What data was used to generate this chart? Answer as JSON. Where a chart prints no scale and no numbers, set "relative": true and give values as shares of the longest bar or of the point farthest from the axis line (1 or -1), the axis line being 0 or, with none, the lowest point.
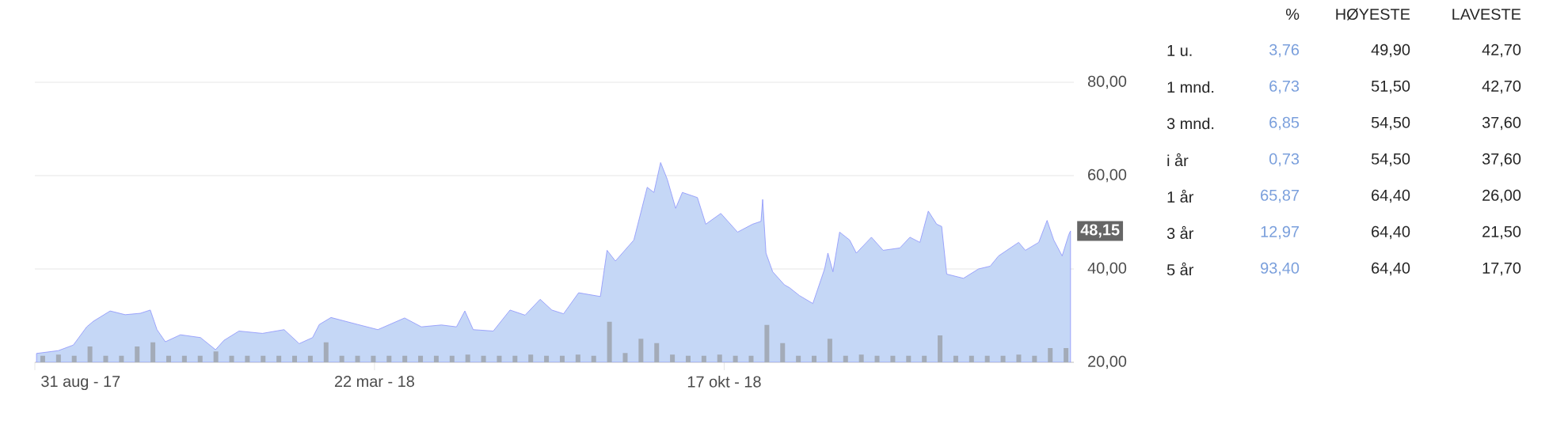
{
  "chart_data": [
    {
      "type": "area",
      "color": "#c5d7f6",
      "grid": "y",
      "xlim": [
        "2017-08-31",
        "2019-05-14"
      ],
      "xticks": [
        {
          "value": "2017-08-31",
          "label": "31 aug - 17"
        },
        {
          "value": "2018-03-22",
          "label": "22 mar - 18"
        },
        {
          "value": "2018-10-17",
          "label": "17 okt - 18"
        }
      ],
      "ylim": [
        20,
        80
      ],
      "yticks": [
        {
          "value": 20,
          "label": "20,00"
        },
        {
          "value": 40,
          "label": "40,00"
        },
        {
          "value": 60,
          "label": "60,00"
        },
        {
          "value": 80,
          "label": "80,00"
        }
      ],
      "x": [
        "2017-09-01",
        "2017-09-14",
        "2017-09-23",
        "2017-10-01",
        "2017-10-05",
        "2017-10-15",
        "2017-10-24",
        "2017-11-02",
        "2017-11-08",
        "2017-11-12",
        "2017-11-17",
        "2017-11-26",
        "2017-12-08",
        "2017-12-17",
        "2017-12-22",
        "2017-12-31",
        "2018-01-14",
        "2018-01-27",
        "2018-02-05",
        "2018-02-13",
        "2018-02-17",
        "2018-02-24",
        "2018-03-12",
        "2018-03-24",
        "2018-04-09",
        "2018-04-19",
        "2018-05-01",
        "2018-05-10",
        "2018-05-15",
        "2018-05-20",
        "2018-06-01",
        "2018-06-11",
        "2018-06-20",
        "2018-06-29",
        "2018-07-06",
        "2018-07-13",
        "2018-07-22",
        "2018-08-04",
        "2018-08-08",
        "2018-08-13",
        "2018-08-24",
        "2018-09-01",
        "2018-09-05",
        "2018-09-09",
        "2018-09-13",
        "2018-09-18",
        "2018-09-22",
        "2018-10-01",
        "2018-10-06",
        "2018-10-15",
        "2018-10-25",
        "2018-11-03",
        "2018-11-08",
        "2018-11-09",
        "2018-11-11",
        "2018-11-15",
        "2018-11-22",
        "2018-11-25",
        "2018-12-01",
        "2018-12-09",
        "2018-12-16",
        "2018-12-18",
        "2018-12-21",
        "2018-12-25",
        "2018-12-31",
        "2019-01-04",
        "2019-01-13",
        "2019-01-20",
        "2019-01-30",
        "2019-02-05",
        "2019-02-11",
        "2019-02-16",
        "2019-02-21",
        "2019-02-24",
        "2019-02-27",
        "2019-03-09",
        "2019-03-18",
        "2019-03-25",
        "2019-03-30",
        "2019-04-11",
        "2019-04-15",
        "2019-04-23",
        "2019-04-28",
        "2019-05-02",
        "2019-05-07",
        "2019-05-11",
        "2019-05-12"
      ],
      "values": [
        21.9,
        22.5,
        23.7,
        27.6,
        28.8,
        31.0,
        30.2,
        30.5,
        31.2,
        27.0,
        24.4,
        25.9,
        25.3,
        22.7,
        24.7,
        26.7,
        26.2,
        27.0,
        24.0,
        25.3,
        28.1,
        29.6,
        28.1,
        27.0,
        29.5,
        27.6,
        28.0,
        27.6,
        31.0,
        27.0,
        26.7,
        31.2,
        30.1,
        33.5,
        31.2,
        30.4,
        34.9,
        34.1,
        44.0,
        41.7,
        46.2,
        57.5,
        56.4,
        62.8,
        59.2,
        53.0,
        56.4,
        55.3,
        49.6,
        51.9,
        47.9,
        49.6,
        50.2,
        54.9,
        43.4,
        39.4,
        36.6,
        36.0,
        34.3,
        32.6,
        40.0,
        43.4,
        39.4,
        47.9,
        46.2,
        43.4,
        46.8,
        44.0,
        44.5,
        46.8,
        45.7,
        52.4,
        49.6,
        49.1,
        38.9,
        38.0,
        40.0,
        40.6,
        42.8,
        45.7,
        44.0,
        45.7,
        50.4,
        46.2,
        42.8,
        47.4,
        48.15
      ],
      "annotations": [
        {
          "text": "48,15",
          "x": "2019-05-12",
          "y": 48.15
        }
      ]
    },
    {
      "type": "bar",
      "relative": true,
      "color": "#a3abb8",
      "categories": [
        null,
        null,
        null,
        null,
        null,
        null,
        null,
        null,
        null,
        null,
        null,
        null,
        null,
        null,
        null,
        null,
        null,
        null,
        null,
        null,
        null,
        null,
        null,
        null,
        null,
        null,
        null,
        null,
        null,
        null,
        null,
        null,
        null,
        null,
        null,
        null,
        null,
        null,
        null,
        null,
        null,
        null,
        null,
        null,
        null,
        null,
        null,
        null,
        null,
        null,
        null,
        null,
        null,
        null,
        null,
        null,
        null,
        null,
        null,
        null,
        null,
        null,
        null,
        null,
        null,
        null
      ],
      "values": [
        0.16,
        0.19,
        0.16,
        0.39,
        0.16,
        0.16,
        0.39,
        0.49,
        0.16,
        0.16,
        0.16,
        0.27,
        0.16,
        0.16,
        0.16,
        0.16,
        0.16,
        0.16,
        0.49,
        0.16,
        0.16,
        0.16,
        0.16,
        0.16,
        0.16,
        0.16,
        0.16,
        0.19,
        0.16,
        0.16,
        0.16,
        0.19,
        0.16,
        0.16,
        0.19,
        0.16,
        1,
        0.23,
        0.58,
        0.47,
        0.19,
        0.16,
        0.16,
        0.19,
        0.16,
        0.16,
        0.92,
        0.47,
        0.16,
        0.16,
        0.58,
        0.16,
        0.19,
        0.16,
        0.16,
        0.16,
        0.16,
        0.66,
        0.16,
        0.16,
        0.16,
        0.16,
        0.19,
        0.16,
        0.35,
        0.35
      ]
    },
    {
      "type": "other",
      "annotations": [
        "%",
        "HØYESTE",
        "LAVESTE",
        "1 u.",
        "3,76",
        "49,90",
        "42,70",
        "1 mnd.",
        "6,73",
        "51,50",
        "42,70",
        "3 mnd.",
        "6,85",
        "54,50",
        "37,60",
        "i år",
        "0,73",
        "54,50",
        "37,60",
        "1 år",
        "65,87",
        "64,40",
        "26,00",
        "3 år",
        "12,97",
        "64,40",
        "21,50",
        "5 år",
        "93,40",
        "64,40",
        "17,70"
      ]
    }
  ]
}
